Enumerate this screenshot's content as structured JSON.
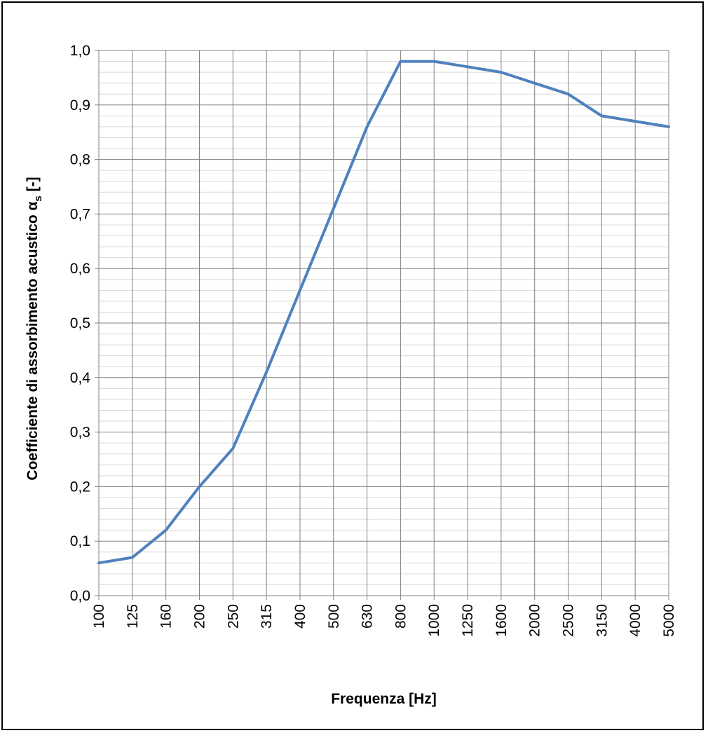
{
  "chart_data": {
    "type": "line",
    "title": "",
    "xlabel": "Frequenza [Hz]",
    "ylabel_main": "Coefficiente di assorbimento acustico α",
    "ylabel_sub": "s",
    "ylabel_suffix": " [-]",
    "categories": [
      "100",
      "125",
      "160",
      "200",
      "250",
      "315",
      "400",
      "500",
      "630",
      "800",
      "1000",
      "1250",
      "1600",
      "2000",
      "2500",
      "3150",
      "4000",
      "5000"
    ],
    "series": [
      {
        "values": [
          0.06,
          0.07,
          0.12,
          0.2,
          0.27,
          0.41,
          0.56,
          0.71,
          0.86,
          0.98,
          0.98,
          0.97,
          0.96,
          0.94,
          0.92,
          0.88,
          0.87,
          0.86
        ],
        "color": "#4F81BD"
      }
    ],
    "ylim": [
      0,
      1.0
    ],
    "ytick_step": 0.1,
    "yticks": [
      "0,0",
      "0,1",
      "0,2",
      "0,3",
      "0,4",
      "0,5",
      "0,6",
      "0,7",
      "0,8",
      "0,9",
      "1,0"
    ],
    "grid": true,
    "minor_grid": true,
    "legend": "none"
  }
}
